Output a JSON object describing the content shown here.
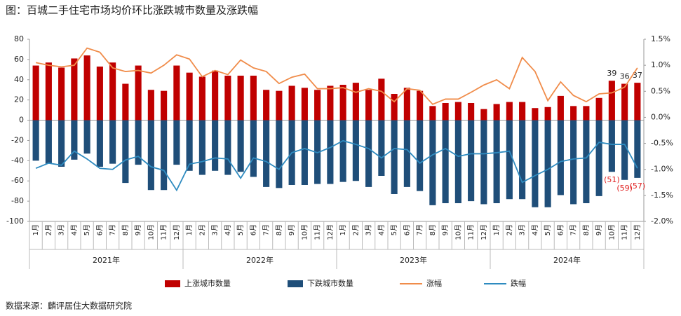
{
  "chart_data": {
    "type": "bar",
    "title": "图：百城二手住宅市场均价环比涨跌城市数量及涨跌幅",
    "source": "数据来源：麟评居住大数据研究院",
    "categories": [
      "1月",
      "2月",
      "3月",
      "4月",
      "5月",
      "6月",
      "7月",
      "8月",
      "9月",
      "10月",
      "11月",
      "12月",
      "1月",
      "2月",
      "3月",
      "4月",
      "5月",
      "6月",
      "7月",
      "8月",
      "9月",
      "10月",
      "11月",
      "12月",
      "1月",
      "2月",
      "3月",
      "4月",
      "5月",
      "6月",
      "7月",
      "8月",
      "9月",
      "10月",
      "11月",
      "12月",
      "1月",
      "2月",
      "3月",
      "4月",
      "5月",
      "6月",
      "7月",
      "8月",
      "9月",
      "10月",
      "11月",
      "12月"
    ],
    "year_labels": [
      "2021年",
      "2022年",
      "2023年",
      "2024年"
    ],
    "series": [
      {
        "name": "上涨城市数量",
        "color": "#c00000",
        "type": "bar",
        "values": [
          54,
          57,
          52,
          61,
          64,
          53,
          57,
          36,
          54,
          30,
          29,
          54,
          47,
          43,
          49,
          44,
          44,
          44,
          30,
          29,
          34,
          32,
          30,
          34,
          35,
          37,
          30,
          41,
          26,
          32,
          29,
          14,
          17,
          18,
          17,
          11,
          16,
          18,
          18,
          12,
          13,
          24,
          14,
          14,
          22,
          39,
          36,
          37
        ],
        "value_labels": [
          null,
          null,
          null,
          null,
          null,
          null,
          null,
          null,
          null,
          null,
          null,
          null,
          null,
          null,
          null,
          null,
          null,
          null,
          null,
          null,
          null,
          null,
          null,
          null,
          null,
          null,
          null,
          null,
          null,
          null,
          null,
          null,
          null,
          null,
          null,
          null,
          null,
          null,
          null,
          null,
          null,
          null,
          null,
          null,
          null,
          "39",
          "36",
          "37"
        ]
      },
      {
        "name": "下跌城市数量",
        "color": "#1f4e79",
        "type": "bar",
        "values": [
          -40,
          -43,
          -46,
          -39,
          -33,
          -46,
          -43,
          -62,
          -44,
          -69,
          -69,
          -44,
          -50,
          -54,
          -50,
          -54,
          -51,
          -56,
          -66,
          -67,
          -64,
          -64,
          -63,
          -63,
          -61,
          -60,
          -66,
          -55,
          -73,
          -66,
          -70,
          -84,
          -82,
          -82,
          -80,
          -83,
          -82,
          -78,
          -78,
          -86,
          -86,
          -74,
          -83,
          -82,
          -75,
          -51,
          -59,
          -57
        ],
        "value_labels": [
          null,
          null,
          null,
          null,
          null,
          null,
          null,
          null,
          null,
          null,
          null,
          null,
          null,
          null,
          null,
          null,
          null,
          null,
          null,
          null,
          null,
          null,
          null,
          null,
          null,
          null,
          null,
          null,
          null,
          null,
          null,
          null,
          null,
          null,
          null,
          null,
          null,
          null,
          null,
          null,
          null,
          null,
          null,
          null,
          null,
          "(51)",
          "(59)",
          "(57)"
        ],
        "value_label_color": "#e02020"
      },
      {
        "name": "涨幅",
        "color": "#f08c4a",
        "type": "line",
        "axis": "y2",
        "values": [
          1.05,
          1.0,
          0.97,
          1.0,
          1.33,
          1.25,
          0.95,
          0.88,
          0.9,
          0.85,
          1.0,
          1.2,
          1.12,
          0.78,
          0.9,
          0.82,
          1.1,
          0.95,
          0.88,
          0.65,
          0.77,
          0.83,
          0.55,
          0.55,
          0.57,
          0.48,
          0.55,
          0.5,
          0.3,
          0.55,
          0.52,
          0.25,
          0.35,
          0.35,
          0.48,
          0.62,
          0.72,
          0.55,
          1.15,
          0.88,
          0.32,
          0.68,
          0.42,
          0.3,
          0.45,
          0.47,
          0.58,
          0.95
        ]
      },
      {
        "name": "跌幅",
        "color": "#2e8bc0",
        "type": "line",
        "axis": "y2",
        "values": [
          -0.98,
          -0.88,
          -0.92,
          -0.65,
          -0.8,
          -0.98,
          -1.0,
          -0.82,
          -0.75,
          -0.95,
          -1.02,
          -1.4,
          -0.9,
          -0.85,
          -0.78,
          -0.8,
          -1.17,
          -0.78,
          -0.85,
          -1.0,
          -0.68,
          -0.6,
          -0.68,
          -0.58,
          -0.45,
          -0.52,
          -0.6,
          -0.78,
          -0.6,
          -0.62,
          -0.88,
          -0.72,
          -0.6,
          -0.75,
          -0.7,
          -0.7,
          -0.68,
          -0.65,
          -1.25,
          -1.12,
          -1.0,
          -0.85,
          -0.8,
          -0.78,
          -0.48,
          -0.52,
          -0.52,
          -0.98
        ]
      }
    ],
    "ylim": [
      -100,
      80
    ],
    "yticks": [
      -100,
      -80,
      -60,
      -40,
      -20,
      0,
      20,
      40,
      60,
      80
    ],
    "y2lim": [
      -2.0,
      1.5
    ],
    "y2ticks": [
      {
        "value": -2.0,
        "label": "-2.0%"
      },
      {
        "value": -1.5,
        "label": "-1.5%"
      },
      {
        "value": -1.0,
        "label": "-1.0%"
      },
      {
        "value": -0.5,
        "label": "-0.5%"
      },
      {
        "value": 0,
        "label": "0.0%"
      },
      {
        "value": 0.5,
        "label": "0.5%"
      },
      {
        "value": 1.0,
        "label": "1.0%"
      },
      {
        "value": 1.5,
        "label": "1.5%"
      }
    ],
    "legend": "bottom"
  }
}
